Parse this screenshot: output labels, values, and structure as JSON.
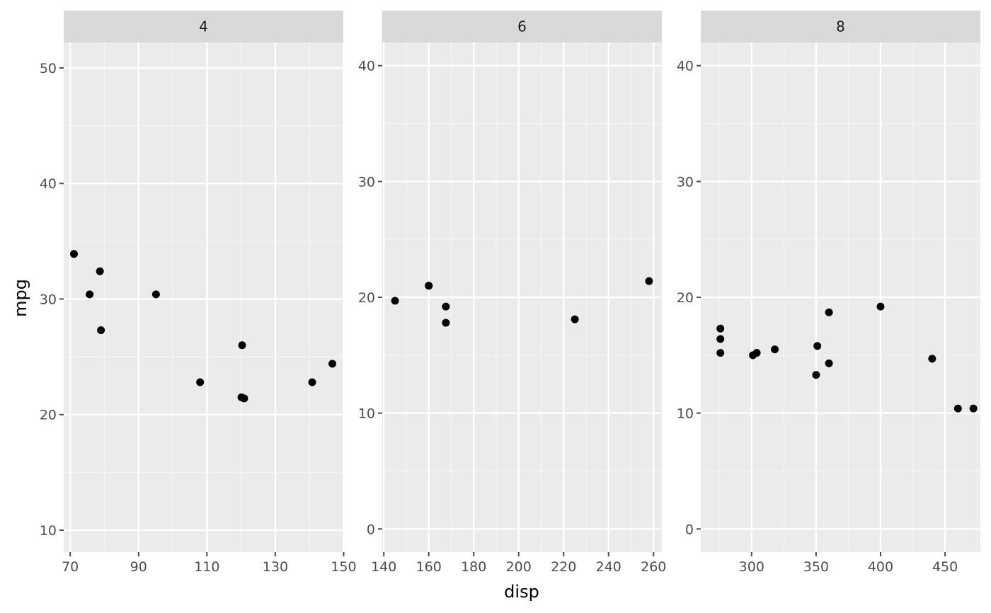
{
  "chart_data": {
    "type": "scatter",
    "xlabel": "disp",
    "ylabel": "mpg",
    "facet_scales": "free",
    "grid": true,
    "colors": {
      "panel_bg": "#EBEBEB",
      "strip_bg": "#D9D9D9",
      "grid_major": "#FFFFFF",
      "grid_minor": "#F5F5F5",
      "point": "#000000",
      "tick": "#4D4D4D",
      "text": "#1A1A1A"
    },
    "panels": [
      {
        "label": "4",
        "xlim": [
          68.1,
          149.9
        ],
        "ylim": [
          8.1,
          52.2
        ],
        "xticks": [
          70,
          90,
          110,
          130,
          150
        ],
        "yticks": [
          10,
          20,
          30,
          40,
          50
        ],
        "points": [
          {
            "x": 71.1,
            "y": 33.9
          },
          {
            "x": 75.7,
            "y": 30.4
          },
          {
            "x": 78.7,
            "y": 32.4
          },
          {
            "x": 79.0,
            "y": 27.3
          },
          {
            "x": 95.1,
            "y": 30.4
          },
          {
            "x": 108.0,
            "y": 22.8
          },
          {
            "x": 120.3,
            "y": 26.0
          },
          {
            "x": 120.1,
            "y": 21.5
          },
          {
            "x": 120.9,
            "y": 21.4
          },
          {
            "x": 140.8,
            "y": 22.8
          },
          {
            "x": 146.7,
            "y": 24.4
          }
        ]
      },
      {
        "label": "6",
        "xlim": [
          139.3,
          263.7
        ],
        "ylim": [
          -2.0,
          42.0
        ],
        "xticks": [
          140,
          160,
          180,
          200,
          220,
          240,
          260
        ],
        "yticks": [
          0,
          10,
          20,
          30,
          40
        ],
        "points": [
          {
            "x": 145.0,
            "y": 19.7
          },
          {
            "x": 160.0,
            "y": 21.0
          },
          {
            "x": 160.0,
            "y": 21.0
          },
          {
            "x": 167.6,
            "y": 19.2
          },
          {
            "x": 167.6,
            "y": 17.8
          },
          {
            "x": 225.0,
            "y": 18.1
          },
          {
            "x": 258.0,
            "y": 21.4
          }
        ]
      },
      {
        "label": "8",
        "xlim": [
          260.6,
          477.4
        ],
        "ylim": [
          -2.0,
          42.0
        ],
        "xticks": [
          300,
          350,
          400,
          450
        ],
        "yticks": [
          0,
          10,
          20,
          30,
          40
        ],
        "points": [
          {
            "x": 275.8,
            "y": 17.3
          },
          {
            "x": 275.8,
            "y": 16.4
          },
          {
            "x": 275.8,
            "y": 15.2
          },
          {
            "x": 301.0,
            "y": 15.0
          },
          {
            "x": 304.0,
            "y": 15.2
          },
          {
            "x": 318.0,
            "y": 15.5
          },
          {
            "x": 350.0,
            "y": 13.3
          },
          {
            "x": 351.0,
            "y": 15.8
          },
          {
            "x": 360.0,
            "y": 18.7
          },
          {
            "x": 360.0,
            "y": 14.3
          },
          {
            "x": 400.0,
            "y": 19.2
          },
          {
            "x": 440.0,
            "y": 14.7
          },
          {
            "x": 460.0,
            "y": 10.4
          },
          {
            "x": 472.0,
            "y": 10.4
          }
        ]
      }
    ]
  }
}
